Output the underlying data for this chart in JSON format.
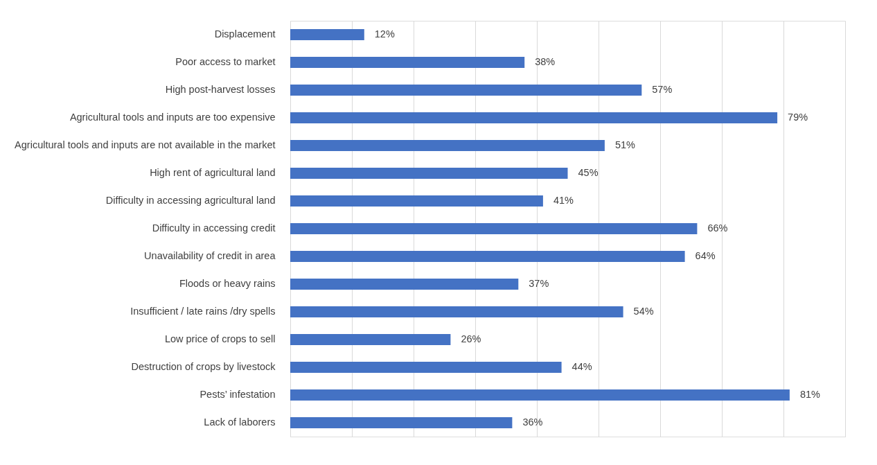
{
  "chart_data": {
    "type": "bar",
    "orientation": "horizontal",
    "categories": [
      "Displacement",
      "Poor access to market",
      "High post-harvest losses",
      "Agricultural tools and inputs are too expensive",
      "Agricultural tools and inputs are not available in the market",
      "High rent of agricultural land",
      "Difficulty in accessing agricultural land",
      "Difficulty in accessing credit",
      "Unavailability of credit in  area",
      "Floods or heavy rains",
      "Insufficient / late rains /dry spells",
      "Low price of crops to sell",
      "Destruction of crops by livestock",
      "Pests’ infestation",
      "Lack of laborers"
    ],
    "values": [
      12,
      38,
      57,
      79,
      51,
      45,
      41,
      66,
      64,
      37,
      54,
      26,
      44,
      81,
      36
    ],
    "value_labels": [
      "12%",
      "38%",
      "57%",
      "79%",
      "51%",
      "45%",
      "41%",
      "66%",
      "64%",
      "37%",
      "54%",
      "26%",
      "44%",
      "81%",
      "36%"
    ],
    "color": "#4472c4",
    "xlim": [
      0,
      90
    ],
    "xticks": [
      {
        "value": 0,
        "label": null
      },
      {
        "value": 10,
        "label": null
      },
      {
        "value": 20,
        "label": null
      },
      {
        "value": 30,
        "label": null
      },
      {
        "value": 40,
        "label": null
      },
      {
        "value": 50,
        "label": null
      },
      {
        "value": 60,
        "label": null
      },
      {
        "value": 70,
        "label": null
      },
      {
        "value": 80,
        "label": null
      },
      {
        "value": 90,
        "label": null
      }
    ],
    "grid": "x",
    "tick_labels": "y"
  }
}
